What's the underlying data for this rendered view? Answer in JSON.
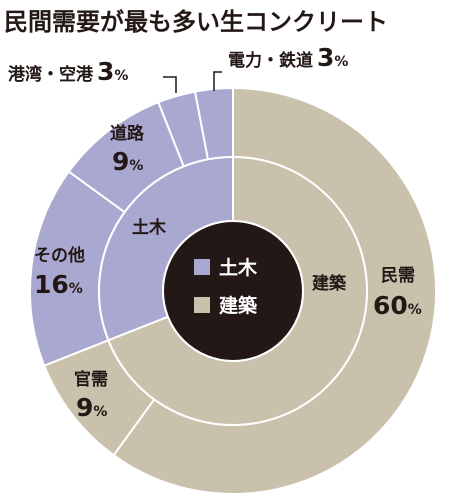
{
  "chart_data": {
    "type": "donut",
    "title": "民間需要が最も多い生コンクリート",
    "colors": {
      "civil": "#a9a8d0",
      "building": "#c9c1ac",
      "center": "#231815",
      "stroke": "#ffffff"
    },
    "inner_ring": [
      {
        "name": "土木",
        "value": 31
      },
      {
        "name": "建築",
        "value": 69
      }
    ],
    "outer_ring": [
      {
        "name": "電力・鉄道",
        "value": 3,
        "group": "土木"
      },
      {
        "name": "港湾・空港",
        "value": 3,
        "group": "土木"
      },
      {
        "name": "道路",
        "value": 9,
        "group": "土木"
      },
      {
        "name": "その他",
        "value": 16,
        "group": "土木"
      },
      {
        "name": "官需",
        "value": 9,
        "group": "建築"
      },
      {
        "name": "民需",
        "value": 60,
        "group": "建築"
      }
    ],
    "legend": [
      {
        "name": "土木",
        "color_key": "civil"
      },
      {
        "name": "建築",
        "color_key": "building"
      }
    ],
    "labels": {
      "denryoku": {
        "name": "電力・鉄道",
        "value": "3",
        "unit": "%"
      },
      "kowan": {
        "name": "港湾・空港",
        "value": "3",
        "unit": "%"
      },
      "doro": {
        "name": "道路",
        "value": "9",
        "unit": "%"
      },
      "sonota": {
        "name": "その他",
        "value": "16",
        "unit": "%"
      },
      "kanju": {
        "name": "官需",
        "value": "9",
        "unit": "%"
      },
      "minju": {
        "name": "民需",
        "value": "60",
        "unit": "%"
      }
    }
  }
}
